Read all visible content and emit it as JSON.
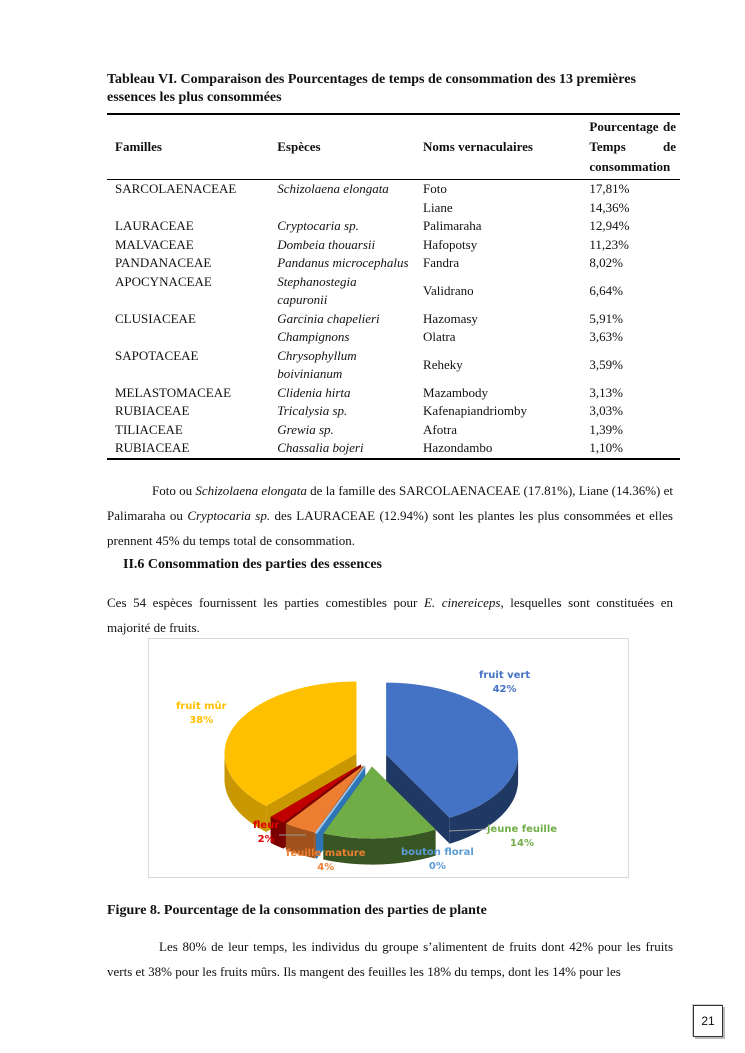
{
  "table": {
    "title": "Tableau VI. Comparaison des Pourcentages de temps de consommation   des 13 premières essences les plus consommées",
    "headers": [
      "Familles",
      "Espèces",
      "Noms vernaculaires",
      "Pourcentage de Temps de consommation"
    ],
    "rows": [
      [
        "SARCOLAENACEAE",
        "Schizolaena elongata",
        "Foto",
        "17,81%"
      ],
      [
        "",
        "",
        "Liane",
        "14,36%"
      ],
      [
        "LAURACEAE",
        "Cryptocaria sp.",
        "Palimaraha",
        "12,94%"
      ],
      [
        "MALVACEAE",
        "Dombeia thouarsii",
        "Hafopotsy",
        "11,23%"
      ],
      [
        "PANDANACEAE",
        "Pandanus microcephalus",
        "Fandra",
        "8,02%"
      ],
      [
        "APOCYNACEAE",
        "Stephanostegia capuronii",
        "Validrano",
        "6,64%"
      ],
      [
        "CLUSIACEAE",
        "Garcinia chapelieri",
        "Hazomasy",
        "5,91%"
      ],
      [
        "",
        "Champignons",
        "Olatra",
        "3,63%"
      ],
      [
        "SAPOTACEAE",
        "Chrysophyllum boivinianum",
        "Reheky",
        "3,59%"
      ],
      [
        "MELASTOMACEAE",
        "Clidenia hirta",
        "Mazambody",
        "3,13%"
      ],
      [
        "RUBIACEAE",
        "Tricalysia sp.",
        "Kafenapiandriomby",
        "3,03%"
      ],
      [
        "TILIACEAE",
        "Grewia sp.",
        "Afotra",
        "1,39%"
      ],
      [
        "RUBIACEAE",
        "Chassalia bojeri",
        "Hazondambo",
        "1,10%"
      ]
    ]
  },
  "paragraph1": [
    {
      "t": "Foto ou ",
      "i": false
    },
    {
      "t": "Schizolaena elongata",
      "i": true
    },
    {
      "t": " de la famille des SARCOLAENACEAE (17.81%), Liane (14.36%) et Palimaraha ou ",
      "i": false
    },
    {
      "t": "Cryptocaria sp.",
      "i": true
    },
    {
      "t": " des LAURACEAE (12.94%) sont les plantes les plus consommées et elles prennent 45% du temps total de consommation.",
      "i": false
    }
  ],
  "section_heading": "II.6  Consommation des parties des essences",
  "paragraph2": [
    {
      "t": "Ces 54 espèces fournissent les parties comestibles pour ",
      "i": false
    },
    {
      "t": "E. cinereiceps",
      "i": true
    },
    {
      "t": ", lesquelles sont constituées en majorité de fruits.",
      "i": false
    }
  ],
  "chart_data": {
    "type": "pie",
    "style": "3D exploded",
    "slices": [
      {
        "label": "fruit vert",
        "value": 42,
        "pct": "42%",
        "color": "#4472c4",
        "side": "#1f3864"
      },
      {
        "label": "jeune feuille",
        "value": 14,
        "pct": "14%",
        "color": "#70ad47",
        "side": "#375623"
      },
      {
        "label": "bouton floral",
        "value": 0,
        "pct": "0%",
        "color": "#5b9bd5",
        "side": "#2e75b6"
      },
      {
        "label": "feuille mature",
        "value": 4,
        "pct": "4%",
        "color": "#ed7d31",
        "side": "#a0521c"
      },
      {
        "label": "fleur",
        "value": 2,
        "pct": "2%",
        "color": "#c00000",
        "side": "#7a0000"
      },
      {
        "label": "fruit mûr",
        "value": 38,
        "pct": "38%",
        "color": "#ffc000",
        "side": "#c99700"
      }
    ]
  },
  "figure_caption": "Figure 8. Pourcentage de la consommation des parties de plante",
  "paragraph3": "Les 80% de leur temps, les individus du groupe s’alimentent de fruits dont 42% pour les fruits verts et 38% pour les fruits mûrs. Ils mangent des feuilles les 18% du temps, dont les 14% pour les",
  "page_number": "21"
}
